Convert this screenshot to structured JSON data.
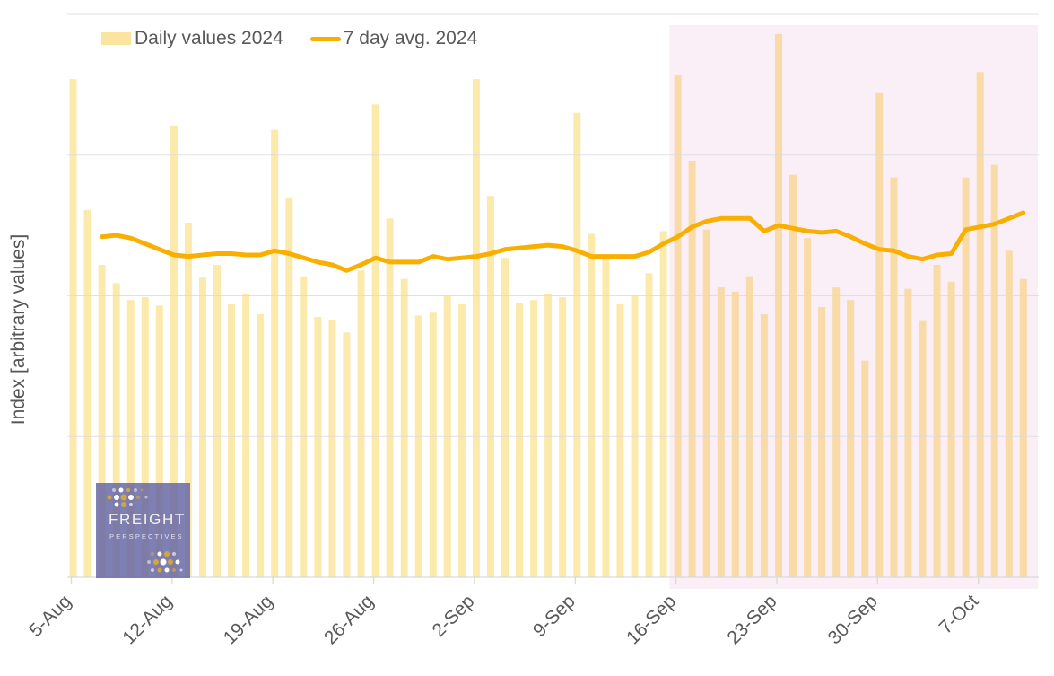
{
  "legend": {
    "items": [
      {
        "label": "Daily values 2024",
        "swatch": "bar"
      },
      {
        "label": "7 day avg. 2024",
        "swatch": "line"
      }
    ]
  },
  "y_axis_label": "Index [arbitrary values]",
  "logo": {
    "title": "FREIGHT",
    "subtitle": "PERSPECTIVES"
  },
  "colors": {
    "bar": "#fce9ac",
    "bar_in_highlight": "#f8dba6",
    "avg_line": "#f9af00",
    "legend_bar_swatch": "#fbe3a0",
    "gridline": "#dcdcdc",
    "axis_line": "#d9d9d9",
    "text": "#595959",
    "highlight_bg": "#faeef7",
    "logo_bg": "rgba(103,105,166,0.85)",
    "logo_dot_gold": "#d2a63e"
  },
  "chart_data": {
    "type": "bar",
    "title": "",
    "xlabel": "",
    "ylabel": "Index [arbitrary values]",
    "ylim": [
      0,
      4
    ],
    "gridline_values": [
      0,
      1,
      2,
      3,
      4
    ],
    "grid": "horizontal",
    "legend_position": "top-left",
    "x_tick_labels": [
      "5-Aug",
      "12-Aug",
      "19-Aug",
      "26-Aug",
      "2-Sep",
      "9-Sep",
      "16-Sep",
      "23-Sep",
      "30-Sep",
      "7-Oct"
    ],
    "x_tick_day_indices": [
      0,
      7,
      14,
      21,
      28,
      35,
      42,
      49,
      56,
      63
    ],
    "dates": [
      "5-Aug",
      "6-Aug",
      "7-Aug",
      "8-Aug",
      "9-Aug",
      "10-Aug",
      "11-Aug",
      "12-Aug",
      "13-Aug",
      "14-Aug",
      "15-Aug",
      "16-Aug",
      "17-Aug",
      "18-Aug",
      "19-Aug",
      "20-Aug",
      "21-Aug",
      "22-Aug",
      "23-Aug",
      "24-Aug",
      "25-Aug",
      "26-Aug",
      "27-Aug",
      "28-Aug",
      "29-Aug",
      "30-Aug",
      "31-Aug",
      "1-Sep",
      "2-Sep",
      "3-Sep",
      "4-Sep",
      "5-Sep",
      "6-Sep",
      "7-Sep",
      "8-Sep",
      "9-Sep",
      "10-Sep",
      "11-Sep",
      "12-Sep",
      "13-Sep",
      "14-Sep",
      "15-Sep",
      "16-Sep",
      "17-Sep",
      "18-Sep",
      "19-Sep",
      "20-Sep",
      "21-Sep",
      "22-Sep",
      "23-Sep",
      "24-Sep",
      "25-Sep",
      "26-Sep",
      "27-Sep",
      "28-Sep",
      "29-Sep",
      "30-Sep",
      "1-Oct",
      "2-Oct",
      "3-Oct",
      "4-Oct",
      "5-Oct",
      "6-Oct",
      "7-Oct",
      "8-Oct",
      "9-Oct",
      "10-Oct"
    ],
    "series": [
      {
        "name": "Daily values 2024",
        "type": "bar",
        "values": [
          3.54,
          2.61,
          2.22,
          2.09,
          1.97,
          1.99,
          1.93,
          3.21,
          2.52,
          2.13,
          2.22,
          1.94,
          2.01,
          1.87,
          3.18,
          2.7,
          2.14,
          1.85,
          1.83,
          1.74,
          2.18,
          3.36,
          2.55,
          2.12,
          1.86,
          1.88,
          2.0,
          1.94,
          3.54,
          2.71,
          2.27,
          1.95,
          1.97,
          2.01,
          1.99,
          3.3,
          2.44,
          2.27,
          1.94,
          2.0,
          2.16,
          2.46,
          3.57,
          2.96,
          2.47,
          2.06,
          2.03,
          2.14,
          1.87,
          3.86,
          2.86,
          2.41,
          1.92,
          2.06,
          1.97,
          1.54,
          3.44,
          2.84,
          2.05,
          1.82,
          2.22,
          2.1,
          2.84,
          3.59,
          2.93,
          2.32,
          2.12
        ]
      },
      {
        "name": "7 day avg. 2024",
        "type": "line",
        "start_day_index": 2,
        "values": [
          2.42,
          2.43,
          2.41,
          2.37,
          2.33,
          2.29,
          2.28,
          2.29,
          2.3,
          2.3,
          2.29,
          2.29,
          2.32,
          2.3,
          2.27,
          2.24,
          2.22,
          2.18,
          2.22,
          2.27,
          2.24,
          2.24,
          2.24,
          2.28,
          2.26,
          2.27,
          2.28,
          2.3,
          2.33,
          2.34,
          2.35,
          2.36,
          2.35,
          2.32,
          2.28,
          2.28,
          2.28,
          2.28,
          2.31,
          2.37,
          2.42,
          2.49,
          2.53,
          2.55,
          2.55,
          2.55,
          2.46,
          2.5,
          2.48,
          2.46,
          2.45,
          2.46,
          2.42,
          2.37,
          2.33,
          2.32,
          2.28,
          2.26,
          2.29,
          2.3,
          2.47,
          2.49,
          2.51,
          2.55,
          2.59
        ]
      }
    ],
    "highlight_region": {
      "from_day_index": 41.3,
      "to_day_index": 67.1
    }
  }
}
